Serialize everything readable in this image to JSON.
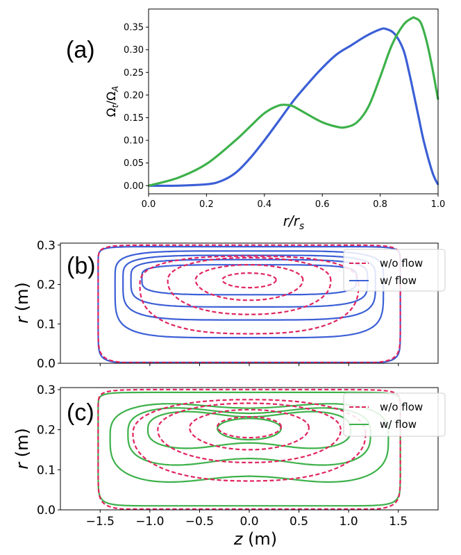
{
  "chart_data": [
    {
      "id": "a",
      "type": "line",
      "panel_label": "(a)",
      "xlabel": "r/r",
      "xlabel_sub": "s",
      "ylabel": "Ω",
      "ylabel_sub_t": "t",
      "ylabel_slash": "/Ω",
      "ylabel_sub_A": "A",
      "xlim": [
        0,
        1
      ],
      "ylim": [
        -0.018,
        0.39
      ],
      "xticks": [
        "0.0",
        "0.2",
        "0.4",
        "0.6",
        "0.8",
        "1.0"
      ],
      "xtick_values": [
        0,
        0.2,
        0.4,
        0.6,
        0.8,
        1.0
      ],
      "yticks": [
        "0.00",
        "0.05",
        "0.10",
        "0.15",
        "0.20",
        "0.25",
        "0.30",
        "0.35"
      ],
      "ytick_values": [
        0,
        0.05,
        0.1,
        0.15,
        0.2,
        0.25,
        0.3,
        0.35
      ],
      "series": [
        {
          "name": "blue",
          "color": "#3b5fd6",
          "x": [
            0,
            0.1,
            0.2,
            0.25,
            0.3,
            0.35,
            0.4,
            0.45,
            0.5,
            0.55,
            0.6,
            0.65,
            0.7,
            0.75,
            0.8,
            0.82,
            0.85,
            0.88,
            0.9,
            0.93,
            0.95,
            0.98,
            1.0
          ],
          "y": [
            0,
            0,
            0.003,
            0.01,
            0.028,
            0.06,
            0.1,
            0.143,
            0.187,
            0.225,
            0.26,
            0.29,
            0.31,
            0.33,
            0.345,
            0.346,
            0.335,
            0.3,
            0.25,
            0.16,
            0.1,
            0.03,
            0.002
          ]
        },
        {
          "name": "green",
          "color": "#3db14a",
          "x": [
            0,
            0.1,
            0.2,
            0.3,
            0.35,
            0.4,
            0.45,
            0.48,
            0.5,
            0.55,
            0.6,
            0.65,
            0.68,
            0.72,
            0.76,
            0.8,
            0.84,
            0.88,
            0.91,
            0.92,
            0.94,
            0.96,
            0.98,
            1.0
          ],
          "y": [
            0,
            0.017,
            0.048,
            0.1,
            0.13,
            0.16,
            0.177,
            0.178,
            0.175,
            0.157,
            0.14,
            0.13,
            0.129,
            0.14,
            0.175,
            0.24,
            0.31,
            0.355,
            0.37,
            0.37,
            0.36,
            0.32,
            0.26,
            0.19
          ]
        }
      ]
    },
    {
      "id": "b",
      "type": "contour",
      "panel_label": "(b)",
      "ylabel": "r",
      "ylabel_units": " (m)",
      "xlim": [
        -1.9,
        1.9
      ],
      "ylim": [
        0,
        0.305
      ],
      "yticks": [
        "0.0",
        "0.1",
        "0.2",
        "0.3"
      ],
      "ytick_values": [
        0,
        0.1,
        0.2,
        0.3
      ],
      "legend": [
        "w/o flow",
        "w/ flow"
      ],
      "dashed_color": "#e0245e",
      "solid_color": "#3b5fd6",
      "dashed_contours": [
        {
          "z0": 0,
          "r0": 0.2,
          "az": 1.52,
          "ar_top": 0.1,
          "ar_bot": 0.2,
          "p": 12
        },
        {
          "z0": 0,
          "r0": 0.2,
          "az": 1.1,
          "ar_top": 0.072,
          "ar_bot": 0.125,
          "p": 2.6
        },
        {
          "z0": 0,
          "r0": 0.21,
          "az": 0.82,
          "ar_top": 0.058,
          "ar_bot": 0.086,
          "p": 2.2
        },
        {
          "z0": 0,
          "r0": 0.212,
          "az": 0.54,
          "ar_top": 0.038,
          "ar_bot": 0.052,
          "p": 2.0
        },
        {
          "z0": 0,
          "r0": 0.212,
          "az": 0.27,
          "ar_top": 0.017,
          "ar_bot": 0.02,
          "p": 2.0
        }
      ],
      "solid_contours": [
        {
          "z0": 0,
          "r0": 0.2,
          "az": 1.52,
          "ar_top": 0.096,
          "ar_bot": 0.2,
          "p": 14
        },
        {
          "z0": 0,
          "r0": 0.205,
          "az": 1.35,
          "ar_top": 0.08,
          "ar_bot": 0.14,
          "p": 5
        },
        {
          "z0": 0,
          "r0": 0.21,
          "az": 1.27,
          "ar_top": 0.064,
          "ar_bot": 0.1,
          "p": 4.5
        },
        {
          "z0": 0,
          "r0": 0.213,
          "az": 1.19,
          "ar_top": 0.05,
          "ar_bot": 0.07,
          "p": 4.3
        },
        {
          "z0": 0,
          "r0": 0.216,
          "az": 1.08,
          "ar_top": 0.034,
          "ar_bot": 0.042,
          "p": 4.2
        }
      ]
    },
    {
      "id": "c",
      "type": "contour",
      "panel_label": "(c)",
      "ylabel": "r",
      "ylabel_units": " (m)",
      "xlabel": "z",
      "xlabel_units": " (m)",
      "xlim": [
        -1.9,
        1.9
      ],
      "ylim": [
        0,
        0.305
      ],
      "xticks": [
        "−1.5",
        "−1.0",
        "−0.5",
        "0.0",
        "0.5",
        "1.0",
        "1.5"
      ],
      "xtick_values": [
        -1.5,
        -1.0,
        -0.5,
        0,
        0.5,
        1.0,
        1.5
      ],
      "yticks": [
        "0.0",
        "0.1",
        "0.2",
        "0.3"
      ],
      "ytick_values": [
        0,
        0.1,
        0.2,
        0.3
      ],
      "legend": [
        "w/o flow",
        "w/ flow"
      ],
      "dashed_color": "#e0245e",
      "solid_color": "#3db14a",
      "dashed_contours": [
        {
          "z0": 0,
          "r0": 0.2,
          "az": 1.52,
          "ar_top": 0.1,
          "ar_bot": 0.2,
          "p": 12
        },
        {
          "z0": 0,
          "r0": 0.19,
          "az": 1.17,
          "ar_top": 0.085,
          "ar_bot": 0.118,
          "p": 2.3
        },
        {
          "z0": 0,
          "r0": 0.2,
          "az": 0.92,
          "ar_top": 0.066,
          "ar_bot": 0.082,
          "p": 2.1
        },
        {
          "z0": 0,
          "r0": 0.205,
          "az": 0.6,
          "ar_top": 0.045,
          "ar_bot": 0.055,
          "p": 2.0
        },
        {
          "z0": 0,
          "r0": 0.208,
          "az": 0.32,
          "ar_top": 0.024,
          "ar_bot": 0.028,
          "p": 2.0
        }
      ],
      "solid_contours": [
        {
          "z0": 0,
          "r0": 0.2,
          "az": 1.52,
          "ar_top": 0.093,
          "ar_bot": 0.19,
          "p": 14,
          "pinch": 0.0
        },
        {
          "z0": 0,
          "r0": 0.18,
          "az": 1.4,
          "ar_top": 0.098,
          "ar_bot": 0.128,
          "p": 3.2,
          "pinch": 0.25
        },
        {
          "z0": 0,
          "r0": 0.19,
          "az": 1.22,
          "ar_top": 0.078,
          "ar_bot": 0.095,
          "p": 3.0,
          "pinch": 0.35
        },
        {
          "z0": 0,
          "r0": 0.2,
          "az": 1.02,
          "ar_top": 0.058,
          "ar_bot": 0.06,
          "p": 2.7,
          "pinch": 0.45
        },
        {
          "z0": 0,
          "r0": 0.203,
          "az": 0.32,
          "ar_top": 0.025,
          "ar_bot": 0.028,
          "p": 2.0,
          "pinch": 0.0
        }
      ]
    }
  ]
}
